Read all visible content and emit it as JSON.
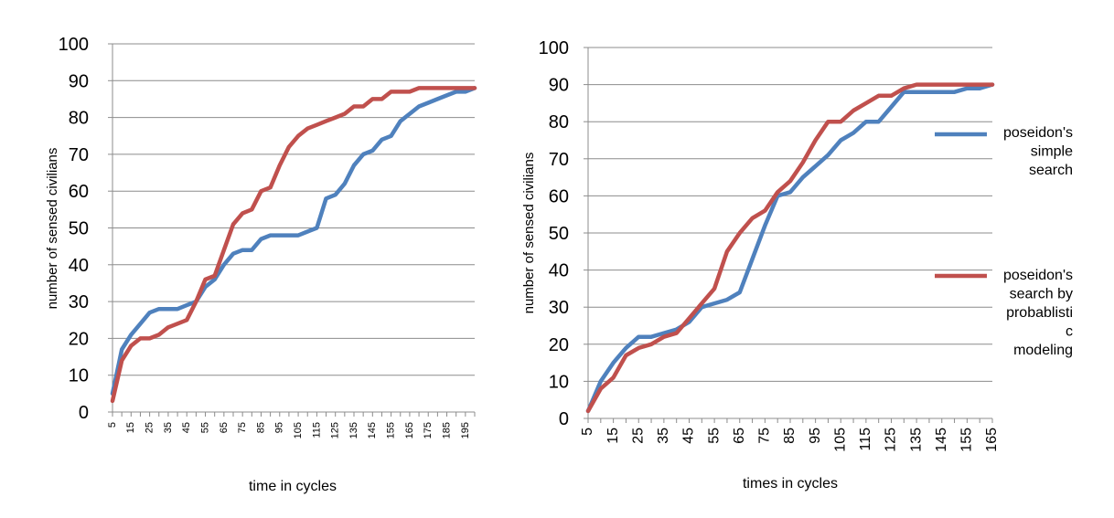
{
  "chart_data": [
    {
      "type": "line",
      "title": "",
      "xlabel": "time in cycles",
      "ylabel": "number of sensed civilians",
      "ylim": [
        0,
        100
      ],
      "ytick_step": 10,
      "grid": true,
      "legend": "none",
      "xtick_labels": [
        "5",
        "15",
        "25",
        "35",
        "45",
        "55",
        "65",
        "75",
        "85",
        "95",
        "105",
        "115",
        "125",
        "135",
        "145",
        "155",
        "165",
        "175",
        "185",
        "195"
      ],
      "x": [
        5,
        10,
        15,
        20,
        25,
        30,
        35,
        40,
        45,
        50,
        55,
        60,
        65,
        70,
        75,
        80,
        85,
        90,
        95,
        100,
        105,
        110,
        115,
        120,
        125,
        130,
        135,
        140,
        145,
        150,
        155,
        160,
        165,
        170,
        175,
        180,
        185,
        190,
        195,
        200
      ],
      "series": [
        {
          "name": "",
          "color": "#4F81BD",
          "values": [
            5,
            17,
            21,
            24,
            27,
            28,
            28,
            28,
            29,
            30,
            34,
            36,
            40,
            43,
            44,
            44,
            47,
            48,
            48,
            48,
            48,
            49,
            50,
            58,
            59,
            62,
            67,
            70,
            71,
            74,
            75,
            79,
            81,
            83,
            84,
            85,
            86,
            87,
            87,
            88
          ]
        },
        {
          "name": "",
          "color": "#C0504D",
          "values": [
            3,
            14,
            18,
            20,
            20,
            21,
            23,
            24,
            25,
            30,
            36,
            37,
            44,
            51,
            54,
            55,
            60,
            61,
            67,
            72,
            75,
            77,
            78,
            79,
            80,
            81,
            83,
            83,
            85,
            85,
            87,
            87,
            87,
            88,
            88,
            88,
            88,
            88,
            88,
            88
          ]
        }
      ]
    },
    {
      "type": "line",
      "title": "",
      "xlabel": "times in cycles",
      "ylabel": "number of sensed civilians",
      "ylim": [
        0,
        100
      ],
      "ytick_step": 10,
      "grid": true,
      "legend": "right",
      "xtick_labels": [
        "5",
        "15",
        "25",
        "35",
        "45",
        "55",
        "65",
        "75",
        "85",
        "95",
        "105",
        "115",
        "125",
        "135",
        "145",
        "155",
        "165"
      ],
      "x": [
        5,
        10,
        15,
        20,
        25,
        30,
        35,
        40,
        45,
        50,
        55,
        60,
        65,
        70,
        75,
        80,
        85,
        90,
        95,
        100,
        105,
        110,
        115,
        120,
        125,
        130,
        135,
        140,
        145,
        150,
        155,
        160,
        165
      ],
      "series": [
        {
          "name": "poseidon's simple search",
          "legend_lines": [
            "poseidon's",
            "simple",
            "search"
          ],
          "color": "#4F81BD",
          "values": [
            2,
            10,
            15,
            19,
            22,
            22,
            23,
            24,
            26,
            30,
            31,
            32,
            34,
            43,
            52,
            60,
            61,
            65,
            68,
            71,
            75,
            77,
            80,
            80,
            84,
            88,
            88,
            88,
            88,
            88,
            89,
            89,
            90
          ]
        },
        {
          "name": "poseidon's search by probablistic modeling",
          "legend_lines": [
            "poseidon's",
            "search by",
            "probablisti",
            "c",
            "modeling"
          ],
          "color": "#C0504D",
          "values": [
            2,
            8,
            11,
            17,
            19,
            20,
            22,
            23,
            27,
            31,
            35,
            45,
            50,
            54,
            56,
            61,
            64,
            69,
            75,
            80,
            80,
            83,
            85,
            87,
            87,
            89,
            90,
            90,
            90,
            90,
            90,
            90,
            90
          ]
        }
      ]
    }
  ]
}
